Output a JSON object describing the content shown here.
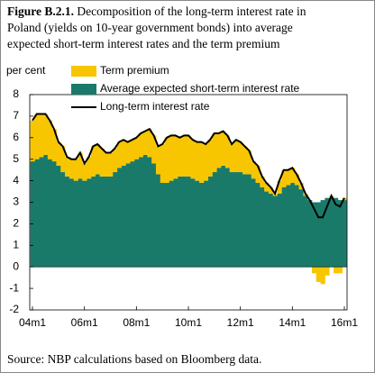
{
  "chart_data": {
    "type": "bar",
    "figure_label": "Figure B.2.1.",
    "title_lines": [
      "Decomposition of the long-term interest rate in",
      "Poland (yields on 10-year government bonds) into average",
      "expected short-term interest rates and the term premium"
    ],
    "y_label": "per cent",
    "categories": [
      "04m1",
      null,
      null,
      null,
      null,
      null,
      null,
      null,
      null,
      null,
      null,
      null,
      "06m1",
      null,
      null,
      null,
      null,
      null,
      null,
      null,
      null,
      null,
      null,
      null,
      "08m1",
      null,
      null,
      null,
      null,
      null,
      null,
      null,
      null,
      null,
      null,
      null,
      "10m1",
      null,
      null,
      null,
      null,
      null,
      null,
      null,
      null,
      null,
      null,
      null,
      "12m1",
      null,
      null,
      null,
      null,
      null,
      null,
      null,
      null,
      null,
      null,
      null,
      "14m1",
      null,
      null,
      null,
      null,
      null,
      null,
      null,
      null,
      null,
      null,
      null,
      "16m1"
    ],
    "series": [
      {
        "name": "Term premium",
        "color": "#f7c600",
        "type": "bar",
        "values": [
          1.9,
          2.1,
          2.0,
          1.9,
          1.8,
          1.5,
          1.1,
          1.2,
          0.9,
          0.9,
          1.0,
          1.2,
          0.8,
          1.0,
          1.4,
          1.4,
          1.3,
          1.1,
          1.1,
          1.1,
          1.2,
          1.2,
          1.0,
          1.0,
          1.0,
          1.1,
          1.1,
          1.3,
          1.3,
          1.3,
          1.8,
          2.1,
          2.1,
          2.0,
          1.8,
          1.9,
          1.9,
          1.8,
          1.8,
          1.9,
          1.7,
          1.7,
          1.8,
          1.6,
          1.6,
          1.5,
          1.3,
          1.5,
          1.4,
          1.3,
          1.1,
          0.8,
          0.8,
          0.5,
          0.4,
          0.3,
          0.1,
          0.6,
          0.8,
          0.7,
          0.7,
          0.5,
          0.3,
          0.1,
          0.0,
          -0.3,
          -0.7,
          -0.8,
          -0.4,
          0.1,
          -0.3,
          -0.3,
          0.1
        ]
      },
      {
        "name": "Average expected short-term interest rate",
        "color": "#1a7a6a",
        "type": "bar",
        "values": [
          4.9,
          5.0,
          5.1,
          5.2,
          5.0,
          4.9,
          4.7,
          4.4,
          4.2,
          4.1,
          4.0,
          4.1,
          4.0,
          4.1,
          4.2,
          4.3,
          4.2,
          4.2,
          4.2,
          4.4,
          4.6,
          4.7,
          4.8,
          4.9,
          5.0,
          5.1,
          5.2,
          5.1,
          4.8,
          4.3,
          3.9,
          3.9,
          4.0,
          4.1,
          4.2,
          4.2,
          4.2,
          4.1,
          4.0,
          3.9,
          4.0,
          4.2,
          4.4,
          4.6,
          4.7,
          4.6,
          4.4,
          4.4,
          4.4,
          4.3,
          4.3,
          4.1,
          3.9,
          3.7,
          3.5,
          3.4,
          3.3,
          3.4,
          3.7,
          3.8,
          3.9,
          3.8,
          3.6,
          3.3,
          3.1,
          3.0,
          3.0,
          3.1,
          3.2,
          3.2,
          3.2,
          3.1,
          3.1
        ]
      },
      {
        "name": "Long-term interest rate",
        "color": "#000000",
        "type": "line",
        "values": [
          6.8,
          7.1,
          7.1,
          7.1,
          6.8,
          6.4,
          5.8,
          5.6,
          5.1,
          5.0,
          5.0,
          5.3,
          4.8,
          5.1,
          5.6,
          5.7,
          5.5,
          5.3,
          5.3,
          5.5,
          5.8,
          5.9,
          5.8,
          5.9,
          6.0,
          6.2,
          6.3,
          6.4,
          6.1,
          5.6,
          5.7,
          6.0,
          6.1,
          6.1,
          6.0,
          6.1,
          6.1,
          5.9,
          5.8,
          5.8,
          5.7,
          5.9,
          6.2,
          6.2,
          6.3,
          6.1,
          5.7,
          5.9,
          5.8,
          5.6,
          5.4,
          4.9,
          4.7,
          4.2,
          3.9,
          3.7,
          3.4,
          4.0,
          4.5,
          4.5,
          4.6,
          4.3,
          3.9,
          3.4,
          3.1,
          2.7,
          2.3,
          2.3,
          2.8,
          3.3,
          2.9,
          2.8,
          3.2
        ]
      }
    ],
    "ylim": [
      -2,
      8
    ],
    "yticks": [
      -2,
      -1,
      0,
      1,
      2,
      3,
      4,
      5,
      6,
      7,
      8
    ],
    "source": "Source: NBP calculations based on Bloomberg data."
  }
}
